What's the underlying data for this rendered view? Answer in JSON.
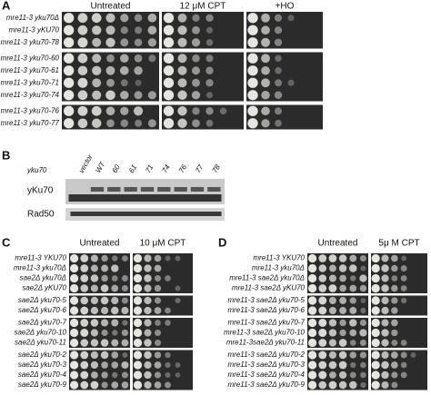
{
  "panel_a": {
    "label": "A",
    "headers": [
      "Untreated",
      "12 μM CPT",
      "+HO"
    ],
    "groups": [
      [
        "mre11-3 yku70Δ",
        "mre11-3 yKU70",
        "mre11-3 yku70-78"
      ],
      [
        "mre11-3 yku70-60",
        "mre11-3 yku70-61",
        "mre11-3 yku70-71",
        "mre11-3 yku70-74"
      ],
      [
        "mre11-3 yku70-76",
        "mre11-3 yku70-77"
      ]
    ]
  },
  "panel_b": {
    "label": "B",
    "gene": "yku70",
    "lanes": [
      "vector",
      "WT",
      "60",
      "61",
      "71",
      "74",
      "76",
      "77",
      "78"
    ],
    "blots": [
      "yKu70",
      "Rad50"
    ]
  },
  "panel_c": {
    "label": "C",
    "headers": [
      "Untreated",
      "10 μM CPT"
    ],
    "groups": [
      [
        "mre11-3 YKU70",
        "mre11-3 yku70Δ",
        "sae2Δ yku70Δ",
        "sae2Δ yKU70"
      ],
      [
        "sae2Δ yku70-5",
        "sae2Δ yku70-6"
      ],
      [
        "sae2Δ yku70-7",
        "sae2Δ yku70-10",
        "sae2Δ yku70-11"
      ],
      [
        "sae2Δ yku70-2",
        "sae2Δ yku70-3",
        "sae2Δ yku70-4",
        "sae2Δ yku70-9"
      ]
    ]
  },
  "panel_d": {
    "label": "D",
    "headers": [
      "Untreated",
      "5μ M CPT"
    ],
    "groups": [
      [
        "mre11-3 YKU70",
        "mre11-3 yku70Δ",
        "mre11-3 sae2Δ yku70Δ",
        "mre11-3 sae2Δ yKU70"
      ],
      [
        "mre11-3 sae2Δ yku70-5",
        "mre11-3 sae2Δ yku70-6"
      ],
      [
        "mre11-3 sae2Δ yku70-7",
        "mre11-3 sae2Δ yku70-10",
        "mre11-3sae2Δ yku70-11"
      ],
      [
        "mre11-3 sae2Δ yku70-2",
        "mre11-3 sae2Δ yku70-3",
        "mre11-3 sae2Δ yku70-4",
        "mre11-3 sae2Δ yku70-9"
      ]
    ]
  }
}
